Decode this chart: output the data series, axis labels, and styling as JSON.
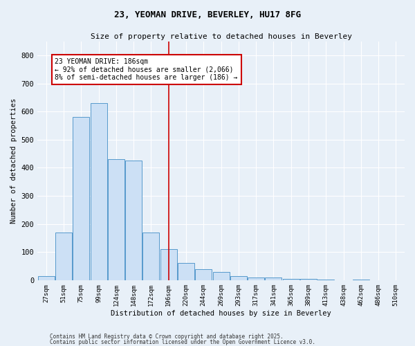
{
  "title1": "23, YEOMAN DRIVE, BEVERLEY, HU17 8FG",
  "title2": "Size of property relative to detached houses in Beverley",
  "xlabel": "Distribution of detached houses by size in Beverley",
  "ylabel": "Number of detached properties",
  "categories": [
    "27sqm",
    "51sqm",
    "75sqm",
    "99sqm",
    "124sqm",
    "148sqm",
    "172sqm",
    "196sqm",
    "220sqm",
    "244sqm",
    "269sqm",
    "293sqm",
    "317sqm",
    "341sqm",
    "365sqm",
    "389sqm",
    "413sqm",
    "438sqm",
    "462sqm",
    "486sqm",
    "510sqm"
  ],
  "values": [
    15,
    170,
    580,
    630,
    430,
    425,
    170,
    110,
    60,
    40,
    30,
    15,
    10,
    10,
    5,
    5,
    3,
    0,
    3,
    0,
    0
  ],
  "bar_color": "#cce0f5",
  "bar_edge_color": "#5599cc",
  "vline_x": 7,
  "vline_color": "#cc0000",
  "annotation_text": "23 YEOMAN DRIVE: 186sqm\n← 92% of detached houses are smaller (2,066)\n8% of semi-detached houses are larger (186) →",
  "annotation_box_color": "#cc0000",
  "bg_color": "#e8f0f8",
  "grid_color": "#ffffff",
  "ylim": [
    0,
    850
  ],
  "yticks": [
    0,
    100,
    200,
    300,
    400,
    500,
    600,
    700,
    800
  ],
  "footer1": "Contains HM Land Registry data © Crown copyright and database right 2025.",
  "footer2": "Contains public sector information licensed under the Open Government Licence v3.0."
}
